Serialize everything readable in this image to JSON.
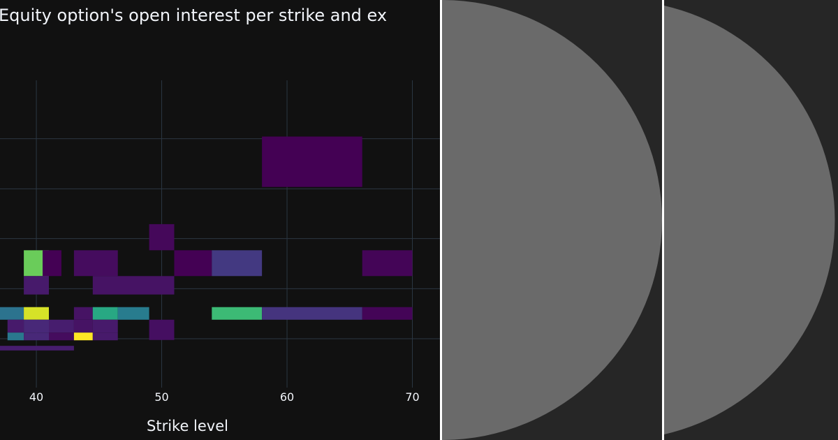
{
  "chart_data": {
    "type": "heatmap",
    "title": "Equity option's open interest per strike and ex",
    "xlabel": "Strike level",
    "ylabel": "",
    "x_ticks": [
      40,
      50,
      60,
      70
    ],
    "x_tick_labels": [
      "40",
      "50",
      "60",
      "70"
    ],
    "x_range": [
      37.1,
      72.2
    ],
    "y_range": [
      0,
      1
    ],
    "y_gridlines": [
      0.159,
      0.322,
      0.485,
      0.647,
      0.81
    ],
    "colorscale": "Viridis",
    "cells": [
      {
        "x0": 58,
        "x1": 66,
        "y0": 0.653,
        "y1": 0.817,
        "value": 0.0
      },
      {
        "x0": 49,
        "x1": 51,
        "y0": 0.447,
        "y1": 0.532,
        "value": 0.02
      },
      {
        "x0": 39,
        "x1": 41,
        "y0": 0.363,
        "y1": 0.447,
        "value": 0.77
      },
      {
        "x0": 40.5,
        "x1": 42,
        "y0": 0.363,
        "y1": 0.447,
        "value": 0.0
      },
      {
        "x0": 43,
        "x1": 46.5,
        "y0": 0.363,
        "y1": 0.447,
        "value": 0.03
      },
      {
        "x0": 51,
        "x1": 54,
        "y0": 0.363,
        "y1": 0.447,
        "value": 0.0
      },
      {
        "x0": 54,
        "x1": 58,
        "y0": 0.363,
        "y1": 0.447,
        "value": 0.17
      },
      {
        "x0": 66,
        "x1": 70,
        "y0": 0.363,
        "y1": 0.447,
        "value": 0.01
      },
      {
        "x0": 39,
        "x1": 41,
        "y0": 0.303,
        "y1": 0.363,
        "value": 0.07
      },
      {
        "x0": 44.5,
        "x1": 51,
        "y0": 0.303,
        "y1": 0.363,
        "value": 0.05
      },
      {
        "x0": 37,
        "x1": 39,
        "y0": 0.221,
        "y1": 0.262,
        "value": 0.38
      },
      {
        "x0": 39,
        "x1": 41,
        "y0": 0.221,
        "y1": 0.262,
        "value": 0.94
      },
      {
        "x0": 43,
        "x1": 44.5,
        "y0": 0.221,
        "y1": 0.262,
        "value": 0.05
      },
      {
        "x0": 44.5,
        "x1": 46.5,
        "y0": 0.221,
        "y1": 0.262,
        "value": 0.6
      },
      {
        "x0": 46.5,
        "x1": 49,
        "y0": 0.221,
        "y1": 0.262,
        "value": 0.42
      },
      {
        "x0": 54,
        "x1": 58,
        "y0": 0.221,
        "y1": 0.262,
        "value": 0.68
      },
      {
        "x0": 58,
        "x1": 66,
        "y0": 0.221,
        "y1": 0.262,
        "value": 0.15
      },
      {
        "x0": 66,
        "x1": 70,
        "y0": 0.221,
        "y1": 0.262,
        "value": 0.01
      },
      {
        "x0": 37.7,
        "x1": 39,
        "y0": 0.179,
        "y1": 0.221,
        "value": 0.07
      },
      {
        "x0": 39,
        "x1": 41,
        "y0": 0.179,
        "y1": 0.221,
        "value": 0.11
      },
      {
        "x0": 41,
        "x1": 43,
        "y0": 0.179,
        "y1": 0.221,
        "value": 0.08
      },
      {
        "x0": 43,
        "x1": 44.5,
        "y0": 0.179,
        "y1": 0.221,
        "value": 0.05
      },
      {
        "x0": 44.5,
        "x1": 46.5,
        "y0": 0.179,
        "y1": 0.221,
        "value": 0.07
      },
      {
        "x0": 49,
        "x1": 51,
        "y0": 0.155,
        "y1": 0.221,
        "value": 0.04
      },
      {
        "x0": 37.7,
        "x1": 39,
        "y0": 0.154,
        "y1": 0.179,
        "value": 0.4
      },
      {
        "x0": 39,
        "x1": 41,
        "y0": 0.154,
        "y1": 0.179,
        "value": 0.11
      },
      {
        "x0": 41,
        "x1": 43,
        "y0": 0.154,
        "y1": 0.179,
        "value": 0.03
      },
      {
        "x0": 43,
        "x1": 44.5,
        "y0": 0.154,
        "y1": 0.179,
        "value": 1.0
      },
      {
        "x0": 44.5,
        "x1": 46.5,
        "y0": 0.154,
        "y1": 0.179,
        "value": 0.07
      },
      {
        "x0": 37,
        "x1": 43,
        "y0": 0.121,
        "y1": 0.136,
        "value": 0.08
      }
    ]
  },
  "colors": {
    "panel_background": "#111111",
    "gridline": "#2b3743",
    "thumbnail_background": "#262626",
    "thumbnail_shape": "#6a6a6a",
    "text": "#f2f5fa"
  },
  "thumbnails": [
    {
      "icon": "half-circle-icon"
    },
    {
      "icon": "half-circle-icon"
    }
  ]
}
